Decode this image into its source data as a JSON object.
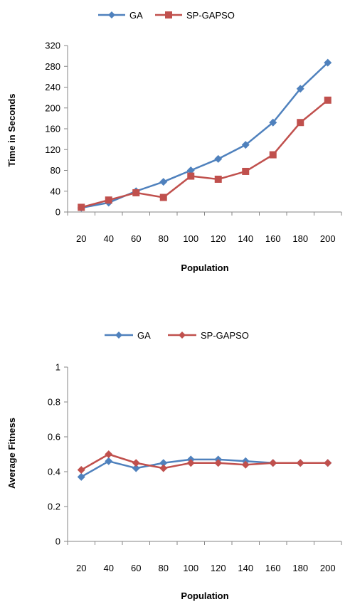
{
  "chart_data": [
    {
      "type": "line",
      "title": "",
      "xlabel": "Population",
      "ylabel": "Time in Seconds",
      "categories": [
        "20",
        "40",
        "60",
        "80",
        "100",
        "120",
        "140",
        "160",
        "180",
        "200"
      ],
      "ylim": [
        0,
        320
      ],
      "yticks": [
        "0",
        "40",
        "80",
        "120",
        "160",
        "200",
        "240",
        "280",
        "320"
      ],
      "grid": "none",
      "legend": "top",
      "series": [
        {
          "name": "GA",
          "color": "#4F81BD",
          "marker": "diamond",
          "values": [
            8,
            18,
            40,
            58,
            80,
            102,
            129,
            172,
            237,
            287
          ]
        },
        {
          "name": "SP-GAPSO",
          "color": "#C0504D",
          "marker": "square",
          "values": [
            9,
            23,
            37,
            28,
            69,
            63,
            78,
            110,
            172,
            215
          ]
        }
      ]
    },
    {
      "type": "line",
      "title": "",
      "xlabel": "Population",
      "ylabel": "Average Fitness",
      "categories": [
        "20",
        "40",
        "60",
        "80",
        "100",
        "120",
        "140",
        "160",
        "180",
        "200"
      ],
      "ylim": [
        0,
        1
      ],
      "yticks": [
        "0",
        "0.2",
        "0.4",
        "0.6",
        "0.8",
        "1"
      ],
      "grid": "none",
      "legend": "top",
      "series": [
        {
          "name": "GA",
          "color": "#4F81BD",
          "marker": "diamond",
          "values": [
            0.37,
            0.46,
            0.42,
            0.45,
            0.47,
            0.47,
            0.46,
            0.45,
            0.45,
            0.45
          ]
        },
        {
          "name": "SP-GAPSO",
          "color": "#C0504D",
          "marker": "diamond",
          "values": [
            0.41,
            0.5,
            0.45,
            0.42,
            0.45,
            0.45,
            0.44,
            0.45,
            0.45,
            0.45
          ]
        }
      ]
    }
  ]
}
